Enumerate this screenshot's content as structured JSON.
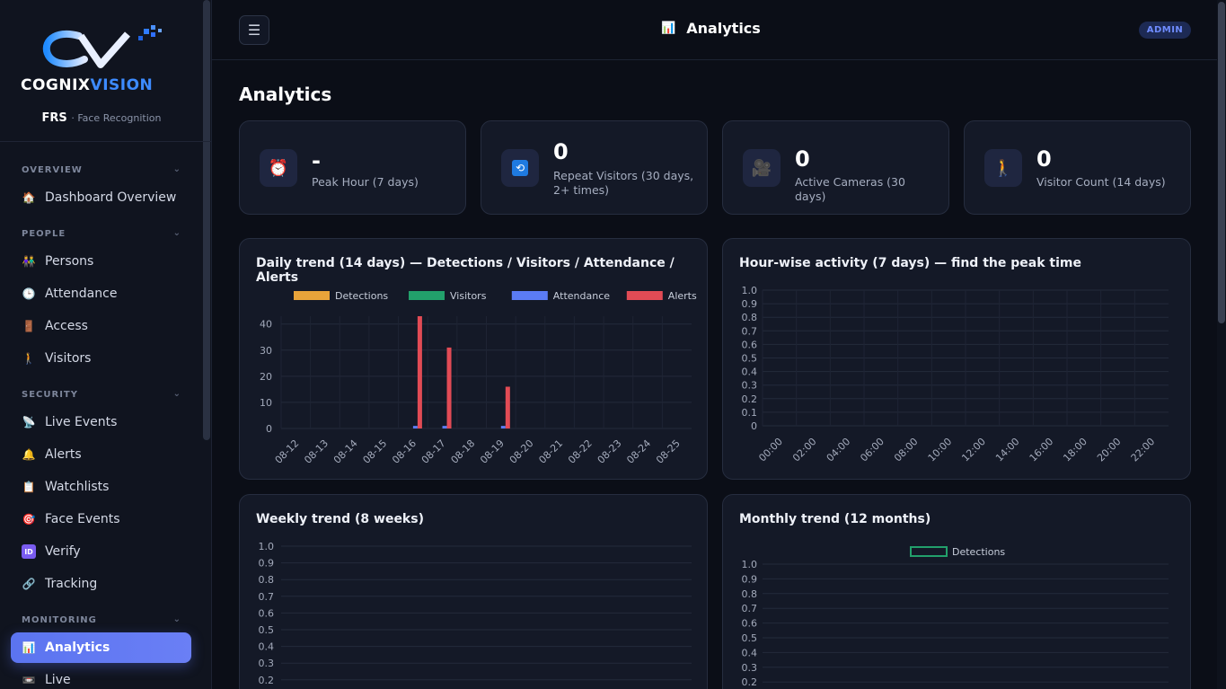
{
  "app": {
    "logo_text": "COGNIX VISION",
    "brand_name": "FRS",
    "brand_sub": "· Face Recognition"
  },
  "sidebar": {
    "sections": [
      {
        "label": "OVERVIEW",
        "items": [
          {
            "label": "Dashboard Overview",
            "icon": "home-icon"
          }
        ]
      },
      {
        "label": "PEOPLE",
        "items": [
          {
            "label": "Persons",
            "icon": "people-icon"
          },
          {
            "label": "Attendance",
            "icon": "clock-icon"
          },
          {
            "label": "Access",
            "icon": "door-icon"
          },
          {
            "label": "Visitors",
            "icon": "walking-person-icon"
          }
        ]
      },
      {
        "label": "SECURITY",
        "items": [
          {
            "label": "Live Events",
            "icon": "satellite-icon"
          },
          {
            "label": "Alerts",
            "icon": "bell-icon"
          },
          {
            "label": "Watchlists",
            "icon": "clipboard-icon"
          },
          {
            "label": "Face Events",
            "icon": "target-icon"
          },
          {
            "label": "Verify",
            "icon": "id-icon"
          },
          {
            "label": "Tracking",
            "icon": "link-icon"
          }
        ]
      },
      {
        "label": "MONITORING",
        "items": [
          {
            "label": "Analytics",
            "icon": "bar-chart-icon",
            "active": true
          },
          {
            "label": "Live",
            "icon": "video-icon"
          }
        ]
      }
    ]
  },
  "header": {
    "title": "Analytics",
    "badge": "ADMIN",
    "menu_glyph": "☰"
  },
  "page": {
    "title": "Analytics"
  },
  "stats": [
    {
      "value": "-",
      "label": "Peak Hour (7 days)",
      "icon": "alarm-clock-icon"
    },
    {
      "value": "0",
      "label": "Repeat Visitors (30 days, 2+ times)",
      "icon": "repeat-icon"
    },
    {
      "value": "0",
      "label": "Active Cameras (30 days)",
      "icon": "camera-icon"
    },
    {
      "value": "0",
      "label": "Visitor Count (14 days)",
      "icon": "walking-person-icon"
    }
  ],
  "colors": {
    "detections": "#e8a33a",
    "visitors": "#22a06b",
    "attendance": "#5b7cf5",
    "alerts": "#e24b55",
    "accent": "#5b74f0"
  },
  "chart_data": [
    {
      "type": "bar",
      "title": "Daily trend (14 days) — Detections / Visitors / Attendance / Alerts",
      "categories": [
        "08-12",
        "08-13",
        "08-14",
        "08-15",
        "08-16",
        "08-17",
        "08-18",
        "08-19",
        "08-20",
        "08-21",
        "08-22",
        "08-23",
        "08-24",
        "08-25"
      ],
      "series": [
        {
          "name": "Detections",
          "values": [
            0,
            0,
            0,
            0,
            0,
            0,
            0,
            0,
            0,
            0,
            0,
            0,
            0,
            0
          ]
        },
        {
          "name": "Visitors",
          "values": [
            0,
            0,
            0,
            0,
            0,
            0,
            0,
            0,
            0,
            0,
            0,
            0,
            0,
            0
          ]
        },
        {
          "name": "Attendance",
          "values": [
            0,
            0,
            0,
            0,
            1,
            1,
            0,
            1,
            0,
            0,
            0,
            0,
            0,
            0
          ]
        },
        {
          "name": "Alerts",
          "values": [
            0,
            0,
            0,
            0,
            43,
            31,
            0,
            16,
            0,
            0,
            0,
            0,
            0,
            0
          ]
        }
      ],
      "yticks": [
        "0",
        "10",
        "20",
        "30",
        "40"
      ],
      "ylim": [
        0,
        43
      ],
      "legend": "top",
      "grid": true
    },
    {
      "type": "bar",
      "title": "Hour-wise activity (7 days) — find the peak time",
      "categories": [
        "00:00",
        "02:00",
        "04:00",
        "06:00",
        "08:00",
        "10:00",
        "12:00",
        "14:00",
        "16:00",
        "18:00",
        "20:00",
        "22:00"
      ],
      "series": [],
      "yticks": [
        "0",
        "0.1",
        "0.2",
        "0.3",
        "0.4",
        "0.5",
        "0.6",
        "0.7",
        "0.8",
        "0.9",
        "1.0"
      ],
      "ylim": [
        0,
        1
      ],
      "grid": true
    },
    {
      "type": "line",
      "title": "Weekly trend (8 weeks)",
      "categories": [],
      "series": [],
      "yticks": [
        "0.2",
        "0.3",
        "0.4",
        "0.5",
        "0.6",
        "0.7",
        "0.8",
        "0.9",
        "1.0"
      ],
      "ylim": [
        0,
        1
      ],
      "grid": true
    },
    {
      "type": "line",
      "title": "Monthly trend (12 months)",
      "categories": [],
      "series": [
        {
          "name": "Detections",
          "values": []
        }
      ],
      "yticks": [
        "0.2",
        "0.3",
        "0.4",
        "0.5",
        "0.6",
        "0.7",
        "0.8",
        "0.9",
        "1.0"
      ],
      "ylim": [
        0,
        1
      ],
      "legend": "top",
      "grid": true
    }
  ]
}
